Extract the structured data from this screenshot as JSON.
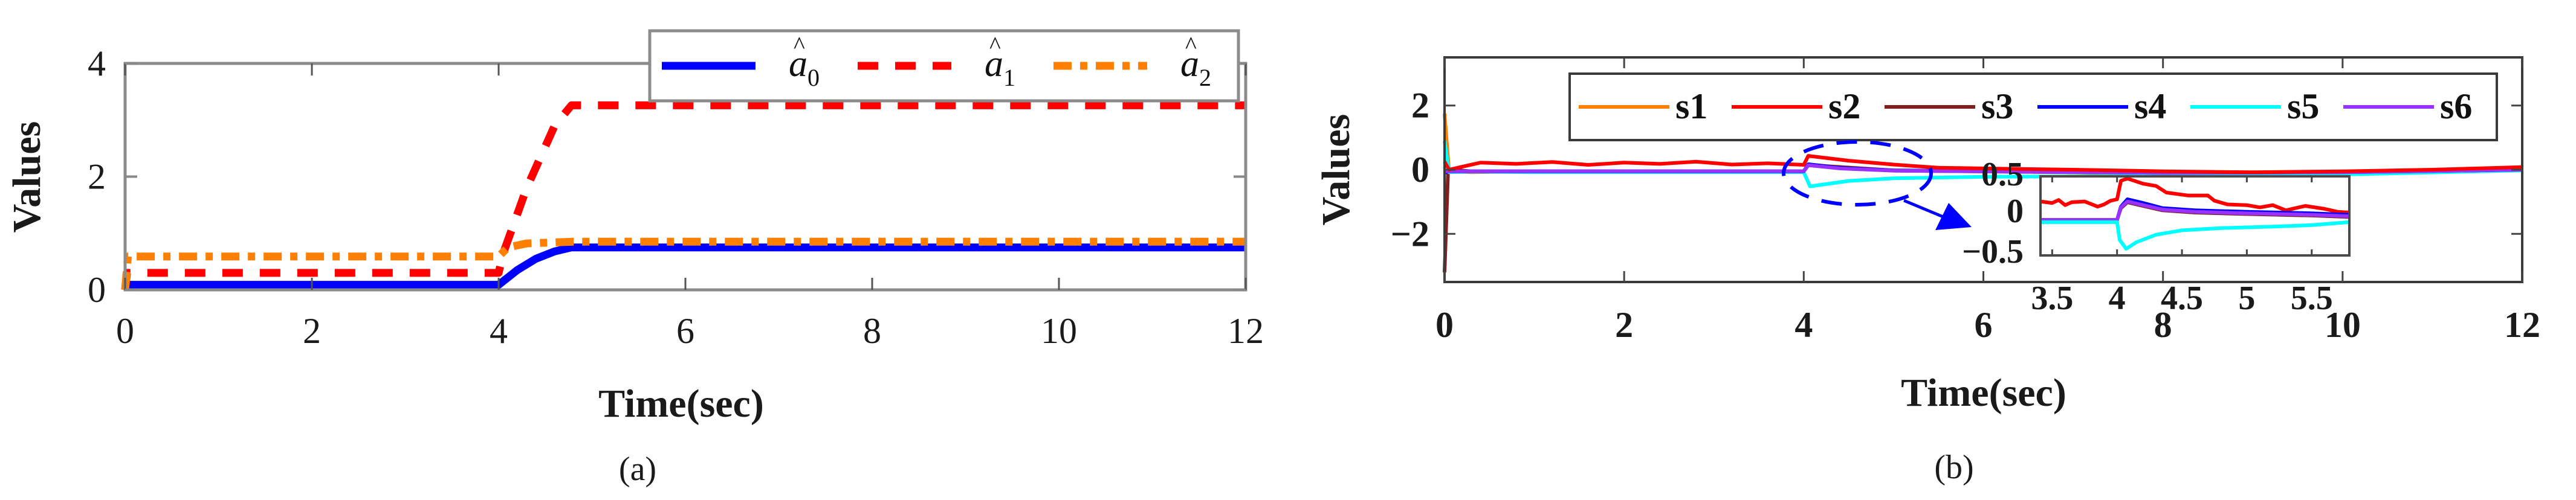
{
  "chart_data": [
    {
      "id": "a",
      "type": "line",
      "caption": "(a)",
      "xlabel": "Time(sec)",
      "ylabel": "Values",
      "xlim": [
        0,
        12
      ],
      "ylim": [
        0,
        4
      ],
      "xticks": [
        0,
        2,
        4,
        6,
        8,
        10,
        12
      ],
      "yticks": [
        0,
        2,
        4
      ],
      "grid": false,
      "legend_position": "top-right (horizontal)",
      "series": [
        {
          "name": "â0",
          "symbol": "a",
          "sub": "0",
          "color": "#0000ff",
          "style": "solid",
          "x": [
            0,
            0.02,
            4.0,
            4.2,
            4.4,
            4.6,
            4.78,
            12
          ],
          "y": [
            0.0,
            0.09,
            0.09,
            0.35,
            0.55,
            0.68,
            0.75,
            0.75
          ]
        },
        {
          "name": "â1",
          "symbol": "a",
          "sub": "1",
          "color": "#ff0000",
          "style": "dashed",
          "x": [
            0,
            0.02,
            4.0,
            4.05,
            4.3,
            4.6,
            4.78,
            12
          ],
          "y": [
            0.0,
            0.3,
            0.3,
            0.65,
            1.8,
            2.9,
            3.26,
            3.26
          ]
        },
        {
          "name": "â2",
          "symbol": "a",
          "sub": "2",
          "color": "#ff8000",
          "style": "dashdot",
          "x": [
            0,
            0.03,
            4.0,
            4.1,
            4.3,
            4.8,
            12
          ],
          "y": [
            0.0,
            0.59,
            0.59,
            0.75,
            0.82,
            0.85,
            0.85
          ]
        }
      ]
    },
    {
      "id": "b",
      "type": "line",
      "caption": "(b)",
      "xlabel": "Time(sec)",
      "ylabel": "Values",
      "xlim": [
        0,
        12
      ],
      "ylim": [
        -3.5,
        3.5
      ],
      "xticks": [
        0,
        2,
        4,
        6,
        8,
        10,
        12
      ],
      "yticks": [
        -2,
        0,
        2
      ],
      "grid": false,
      "legend_position": "top (horizontal, inside axes)",
      "annotation": "dashed blue ellipse around t≈4–5.5 with arrow pointing to zoomed inset",
      "series": [
        {
          "name": "s1",
          "color": "#ff8000",
          "x": [
            0,
            0.05,
            0.3,
            1,
            4,
            4.05,
            5,
            8,
            10,
            12
          ],
          "y": [
            1.75,
            -0.05,
            -0.08,
            -0.05,
            -0.05,
            0.15,
            -0.02,
            -0.12,
            -0.1,
            0.0
          ]
        },
        {
          "name": "s2",
          "color": "#ff0000",
          "x": [
            0,
            0.05,
            0.4,
            0.8,
            1.2,
            1.6,
            2.0,
            2.4,
            2.8,
            3.2,
            3.6,
            4.0,
            4.05,
            4.5,
            5.0,
            5.5,
            6,
            7,
            8,
            9,
            10,
            11,
            12
          ],
          "y": [
            0.25,
            0.0,
            0.22,
            0.18,
            0.24,
            0.15,
            0.22,
            0.18,
            0.25,
            0.16,
            0.2,
            0.15,
            0.43,
            0.28,
            0.16,
            0.06,
            0.04,
            0.0,
            -0.05,
            -0.08,
            -0.05,
            0.0,
            0.08
          ]
        },
        {
          "name": "s3",
          "color": "#7f1f1f",
          "x": [
            0,
            0.04,
            0.3,
            1,
            4,
            4.05,
            5,
            8,
            10,
            12
          ],
          "y": [
            -3.2,
            0.0,
            -0.05,
            -0.05,
            -0.05,
            0.14,
            -0.03,
            -0.1,
            -0.09,
            0.0
          ]
        },
        {
          "name": "s4",
          "color": "#0000ff",
          "x": [
            0,
            0.04,
            1,
            4,
            4.05,
            4.4,
            5,
            8,
            10,
            12
          ],
          "y": [
            -0.1,
            -0.05,
            -0.05,
            -0.05,
            0.17,
            0.06,
            -0.02,
            -0.1,
            -0.08,
            0.0
          ]
        },
        {
          "name": "s5",
          "color": "#00ffff",
          "x": [
            0,
            0.05,
            0.3,
            1,
            4,
            4.07,
            4.5,
            5,
            6,
            8,
            10,
            12
          ],
          "y": [
            0.9,
            -0.08,
            -0.06,
            -0.08,
            -0.08,
            -0.52,
            -0.35,
            -0.27,
            -0.22,
            -0.2,
            -0.15,
            -0.02
          ]
        },
        {
          "name": "s6",
          "color": "#9932ff",
          "x": [
            0,
            0.04,
            1,
            4,
            4.05,
            4.4,
            5,
            8,
            10,
            12
          ],
          "y": [
            -0.05,
            -0.05,
            -0.05,
            -0.05,
            0.14,
            0.04,
            -0.03,
            -0.1,
            -0.08,
            0.0
          ]
        }
      ],
      "inset": {
        "xlim": [
          3.41,
          5.79
        ],
        "ylim": [
          -0.61,
          0.46
        ],
        "xticks": [
          3.5,
          4,
          4.5,
          5,
          5.5
        ],
        "xtick_labels": [
          "3.5",
          "4",
          "4.5",
          "5",
          "5.5"
        ],
        "yticks": [
          -0.5,
          0,
          0.5
        ],
        "ytick_labels": [
          "-0.5",
          "0",
          "0.5"
        ],
        "series": [
          {
            "name": "s2",
            "color": "#ff0000",
            "x": [
              3.41,
              3.5,
              3.55,
              3.6,
              3.65,
              3.75,
              3.85,
              3.9,
              3.95,
              4.0,
              4.03,
              4.08,
              4.2,
              4.3,
              4.38,
              4.55,
              4.7,
              4.75,
              4.85,
              5.0,
              5.1,
              5.2,
              5.3,
              5.45,
              5.6,
              5.7,
              5.79
            ],
            "y": [
              0.12,
              0.1,
              0.14,
              0.07,
              0.11,
              0.12,
              0.05,
              0.08,
              0.13,
              0.15,
              0.4,
              0.43,
              0.36,
              0.33,
              0.24,
              0.2,
              0.2,
              0.13,
              0.08,
              0.07,
              0.04,
              0.07,
              0.0,
              0.06,
              0.02,
              -0.02,
              -0.03
            ]
          },
          {
            "name": "s4",
            "color": "#0000ff",
            "x": [
              3.41,
              4.0,
              4.03,
              4.08,
              4.2,
              4.35,
              4.6,
              5.0,
              5.5,
              5.79
            ],
            "y": [
              -0.13,
              -0.13,
              0.05,
              0.15,
              0.1,
              0.03,
              0.0,
              -0.02,
              -0.04,
              -0.06
            ]
          },
          {
            "name": "s3",
            "color": "#7f1f1f",
            "x": [
              3.41,
              4.0,
              4.03,
              4.08,
              4.2,
              4.35,
              4.6,
              5.0,
              5.5,
              5.79
            ],
            "y": [
              -0.13,
              -0.13,
              0.03,
              0.11,
              0.06,
              0.0,
              -0.03,
              -0.05,
              -0.07,
              -0.09
            ]
          },
          {
            "name": "s6",
            "color": "#9932ff",
            "x": [
              3.41,
              4.0,
              4.03,
              4.08,
              4.2,
              4.35,
              4.6,
              5.0,
              5.5,
              5.79
            ],
            "y": [
              -0.13,
              -0.13,
              0.04,
              0.12,
              0.07,
              0.01,
              -0.02,
              -0.04,
              -0.06,
              -0.08
            ]
          },
          {
            "name": "s5",
            "color": "#00ffff",
            "x": [
              3.41,
              4.0,
              4.02,
              4.07,
              4.15,
              4.3,
              4.5,
              4.8,
              5.2,
              5.5,
              5.79
            ],
            "y": [
              -0.16,
              -0.16,
              -0.4,
              -0.52,
              -0.43,
              -0.33,
              -0.27,
              -0.24,
              -0.22,
              -0.2,
              -0.16
            ]
          }
        ]
      }
    }
  ]
}
